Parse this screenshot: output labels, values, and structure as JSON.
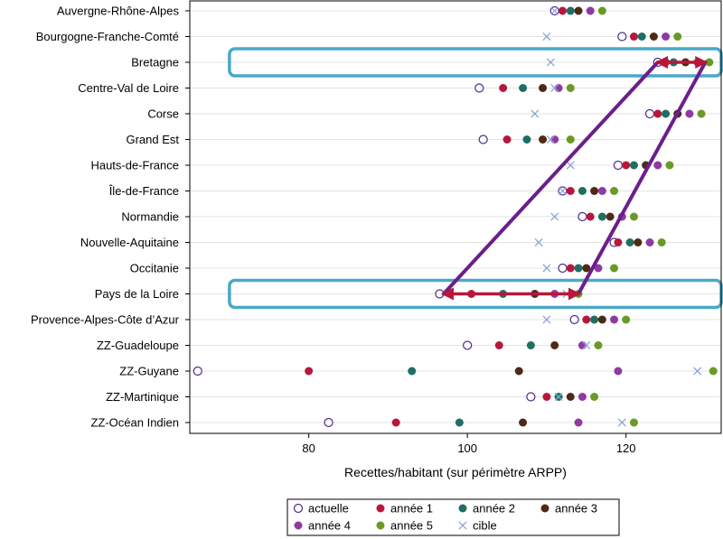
{
  "chart_data": {
    "type": "scatter",
    "xlabel": "Recettes/habitant (sur périmètre ARPP)",
    "xlim": [
      65,
      132
    ],
    "xticks": [
      80,
      100,
      120
    ],
    "grid": "horizontal",
    "legend_position": "bottom",
    "series_styles": [
      {
        "key": "actuelle",
        "name": "actuelle",
        "color": "#4b2a8c",
        "marker": "open-circle"
      },
      {
        "key": "annee1",
        "name": "année 1",
        "color": "#b8173a",
        "marker": "filled-circle"
      },
      {
        "key": "annee2",
        "name": "année 2",
        "color": "#1f6e62",
        "marker": "filled-circle"
      },
      {
        "key": "annee3",
        "name": "année 3",
        "color": "#4d2a16",
        "marker": "filled-circle"
      },
      {
        "key": "annee4",
        "name": "année 4",
        "color": "#8e3aa3",
        "marker": "filled-circle"
      },
      {
        "key": "annee5",
        "name": "année 5",
        "color": "#6a9a26",
        "marker": "filled-circle"
      },
      {
        "key": "cible",
        "name": "cible",
        "color": "#8aa3d6",
        "marker": "x"
      }
    ],
    "regions": [
      {
        "name": "Auvergne-Rhône-Alpes",
        "actuelle": 111,
        "annee1": 112,
        "annee2": 113,
        "annee3": 114,
        "annee4": 115.5,
        "annee5": 117,
        "cible": 111
      },
      {
        "name": "Bourgogne-Franche-Comté",
        "actuelle": 119.5,
        "annee1": 121,
        "annee2": 122,
        "annee3": 123.5,
        "annee4": 125,
        "annee5": 126.5,
        "cible": 110
      },
      {
        "name": "Bretagne",
        "actuelle": 124,
        "annee1": 125,
        "annee2": 126,
        "annee3": 127.5,
        "annee4": 129,
        "annee5": 130.5,
        "cible": 110.5
      },
      {
        "name": "Centre-Val de Loire",
        "actuelle": 101.5,
        "annee1": 104.5,
        "annee2": 107,
        "annee3": 109.5,
        "annee4": 111.5,
        "annee5": 113,
        "cible": 111
      },
      {
        "name": "Corse",
        "actuelle": 123,
        "annee1": 124,
        "annee2": 125,
        "annee3": 126.5,
        "annee4": 128,
        "annee5": 129.5,
        "cible": 108.5
      },
      {
        "name": "Grand Est",
        "actuelle": 102,
        "annee1": 105,
        "annee2": 107.5,
        "annee3": 109.5,
        "annee4": 111,
        "annee5": 113,
        "cible": 110.5
      },
      {
        "name": "Hauts-de-France",
        "actuelle": 119,
        "annee1": 120,
        "annee2": 121,
        "annee3": 122.5,
        "annee4": 124,
        "annee5": 125.5,
        "cible": 113
      },
      {
        "name": "Île-de-France",
        "actuelle": 112,
        "annee1": 113,
        "annee2": 114.5,
        "annee3": 116,
        "annee4": 117,
        "annee5": 118.5,
        "cible": 112
      },
      {
        "name": "Normandie",
        "actuelle": 114.5,
        "annee1": 115.5,
        "annee2": 117,
        "annee3": 118,
        "annee4": 119.5,
        "annee5": 121,
        "cible": 111
      },
      {
        "name": "Nouvelle-Aquitaine",
        "actuelle": 118.5,
        "annee1": 119,
        "annee2": 120.5,
        "annee3": 121.5,
        "annee4": 123,
        "annee5": 124.5,
        "cible": 109
      },
      {
        "name": "Occitanie",
        "actuelle": 112,
        "annee1": 113,
        "annee2": 114,
        "annee3": 115,
        "annee4": 116.5,
        "annee5": 118.5,
        "cible": 110
      },
      {
        "name": "Pays de la Loire",
        "actuelle": 96.5,
        "annee1": 100.5,
        "annee2": 104.5,
        "annee3": 108.5,
        "annee4": 111,
        "annee5": 114,
        "cible": 112.5
      },
      {
        "name": "Provence-Alpes-Côte d’Azur",
        "actuelle": 113.5,
        "annee1": 115,
        "annee2": 116,
        "annee3": 117,
        "annee4": 118.5,
        "annee5": 120,
        "cible": 110
      },
      {
        "name": "ZZ-Guadeloupe",
        "actuelle": 100,
        "annee1": 104,
        "annee2": 108,
        "annee3": 111,
        "annee4": 114.5,
        "annee5": 116.5,
        "cible": 115
      },
      {
        "name": "ZZ-Guyane",
        "actuelle": 66,
        "annee1": 80,
        "annee2": 93,
        "annee3": 106.5,
        "annee4": 119,
        "annee5": 131,
        "cible": 129
      },
      {
        "name": "ZZ-Martinique",
        "actuelle": 108,
        "annee1": 110,
        "annee2": 111.5,
        "annee3": 113,
        "annee4": 114.5,
        "annee5": 116,
        "cible": 111.5
      },
      {
        "name": "ZZ-Océan Indien",
        "actuelle": 82.5,
        "annee1": 91,
        "annee2": 99,
        "annee3": 107,
        "annee4": 114,
        "annee5": 121,
        "cible": 119.5
      }
    ],
    "annotations": [
      {
        "type": "highlight-box",
        "region": "Bretagne",
        "from_x": 70,
        "to_x": 132,
        "color": "#4aa8c8"
      },
      {
        "type": "highlight-box",
        "region": "Pays de la Loire",
        "from_x": 70,
        "to_x": 132,
        "color": "#4aa8c8"
      },
      {
        "type": "double-arrow",
        "region": "Bretagne",
        "from_x": 124,
        "to_x": 130,
        "color": "#b8173a"
      },
      {
        "type": "double-arrow",
        "region": "Pays de la Loire",
        "from_x": 97,
        "to_x": 114,
        "color": "#b8173a"
      },
      {
        "type": "connector",
        "from_region": "Bretagne",
        "from_x": 124,
        "to_region": "Pays de la Loire",
        "to_x": 97,
        "color": "#6b1f8a"
      },
      {
        "type": "connector",
        "from_region": "Bretagne",
        "from_x": 130,
        "to_region": "Pays de la Loire",
        "to_x": 114,
        "color": "#6b1f8a"
      }
    ]
  }
}
